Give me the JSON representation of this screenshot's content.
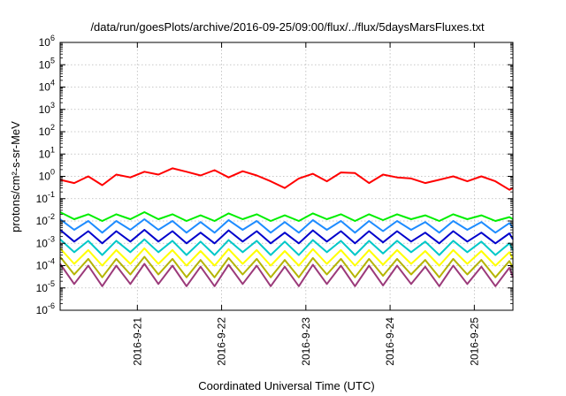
{
  "chart_data": {
    "type": "line",
    "title": "/data/run/goesPlots/archive/2016-09-25/09:00/flux/../flux/5daysMarsFluxes.txt",
    "xlabel": "Coordinated Universal Time (UTC)",
    "ylabel": "protons/cm²-s-sr-MeV",
    "yscale": "log",
    "ylim": [
      1e-06,
      1000000.0
    ],
    "xlim": [
      "2016-09-20 02:00",
      "2016-09-25 11:00"
    ],
    "grid": true,
    "legend": "none",
    "x_ticks": [
      "2016-9-21",
      "2016-9-22",
      "2016-9-23",
      "2016-9-24",
      "2016-9-25"
    ],
    "y_ticks": [
      {
        "base": "10",
        "exp": "-6"
      },
      {
        "base": "10",
        "exp": "-5"
      },
      {
        "base": "10",
        "exp": "-4"
      },
      {
        "base": "10",
        "exp": "-3"
      },
      {
        "base": "10",
        "exp": "-2"
      },
      {
        "base": "10",
        "exp": "-1"
      },
      {
        "base": "10",
        "exp": "0"
      },
      {
        "base": "10",
        "exp": "1"
      },
      {
        "base": "10",
        "exp": "2"
      },
      {
        "base": "10",
        "exp": "3"
      },
      {
        "base": "10",
        "exp": "4"
      },
      {
        "base": "10",
        "exp": "5"
      },
      {
        "base": "10",
        "exp": "6"
      }
    ],
    "x": [
      "2016-09-20 02:00",
      "2016-09-20 06:00",
      "2016-09-20 10:00",
      "2016-09-20 14:00",
      "2016-09-20 18:00",
      "2016-09-20 22:00",
      "2016-09-21 02:00",
      "2016-09-21 06:00",
      "2016-09-21 10:00",
      "2016-09-21 14:00",
      "2016-09-21 18:00",
      "2016-09-21 22:00",
      "2016-09-22 02:00",
      "2016-09-22 06:00",
      "2016-09-22 10:00",
      "2016-09-22 14:00",
      "2016-09-22 18:00",
      "2016-09-22 22:00",
      "2016-09-23 02:00",
      "2016-09-23 06:00",
      "2016-09-23 10:00",
      "2016-09-23 14:00",
      "2016-09-23 18:00",
      "2016-09-23 22:00",
      "2016-09-24 02:00",
      "2016-09-24 06:00",
      "2016-09-24 10:00",
      "2016-09-24 14:00",
      "2016-09-24 18:00",
      "2016-09-24 22:00",
      "2016-09-25 02:00",
      "2016-09-25 06:00",
      "2016-09-25 10:00",
      "2016-09-25 11:00"
    ],
    "series": [
      {
        "color": "#ff0000",
        "values": [
          0.7,
          0.5,
          1.0,
          0.4,
          1.2,
          0.9,
          1.6,
          1.2,
          2.3,
          1.6,
          1.1,
          1.9,
          0.9,
          1.7,
          1.1,
          0.6,
          0.3,
          0.8,
          1.3,
          0.6,
          1.5,
          1.4,
          0.5,
          1.2,
          0.9,
          0.8,
          0.5,
          0.7,
          1.0,
          0.6,
          1.0,
          0.6,
          0.25,
          0.3
        ]
      },
      {
        "color": "#00ee00",
        "values": [
          0.025,
          0.012,
          0.02,
          0.01,
          0.02,
          0.012,
          0.025,
          0.012,
          0.02,
          0.01,
          0.018,
          0.01,
          0.022,
          0.012,
          0.02,
          0.01,
          0.018,
          0.01,
          0.022,
          0.012,
          0.02,
          0.01,
          0.02,
          0.011,
          0.02,
          0.012,
          0.018,
          0.01,
          0.02,
          0.012,
          0.018,
          0.01,
          0.015,
          0.012
        ]
      },
      {
        "color": "#1e8cff",
        "values": [
          0.012,
          0.004,
          0.01,
          0.003,
          0.01,
          0.004,
          0.012,
          0.004,
          0.01,
          0.003,
          0.009,
          0.003,
          0.011,
          0.004,
          0.01,
          0.003,
          0.009,
          0.003,
          0.011,
          0.004,
          0.01,
          0.003,
          0.01,
          0.0035,
          0.01,
          0.004,
          0.009,
          0.003,
          0.01,
          0.004,
          0.009,
          0.003,
          0.008,
          0.005
        ]
      },
      {
        "color": "#0000cc",
        "values": [
          0.004,
          0.0012,
          0.0035,
          0.001,
          0.0035,
          0.0012,
          0.004,
          0.0012,
          0.0035,
          0.001,
          0.003,
          0.001,
          0.0038,
          0.0012,
          0.0035,
          0.001,
          0.003,
          0.001,
          0.0038,
          0.0012,
          0.0035,
          0.001,
          0.0035,
          0.0011,
          0.0035,
          0.0012,
          0.003,
          0.001,
          0.0035,
          0.0012,
          0.003,
          0.001,
          0.0028,
          0.0015
        ]
      },
      {
        "color": "#00c8c8",
        "values": [
          0.0015,
          0.0004,
          0.0013,
          0.0003,
          0.0013,
          0.0004,
          0.0015,
          0.0004,
          0.0013,
          0.0003,
          0.0012,
          0.0003,
          0.0014,
          0.0004,
          0.0013,
          0.0003,
          0.0012,
          0.0003,
          0.0014,
          0.0004,
          0.0013,
          0.0003,
          0.0013,
          0.00035,
          0.0013,
          0.0004,
          0.0012,
          0.0003,
          0.0013,
          0.0004,
          0.0012,
          0.0003,
          0.001,
          0.0005
        ]
      },
      {
        "color": "#ffff00",
        "values": [
          0.0006,
          0.00012,
          0.0005,
          0.0001,
          0.0005,
          0.00012,
          0.0006,
          0.00012,
          0.0005,
          0.0001,
          0.00045,
          0.0001,
          0.00055,
          0.00012,
          0.0005,
          0.0001,
          0.00045,
          0.0001,
          0.00055,
          0.00012,
          0.0005,
          0.0001,
          0.0005,
          0.00011,
          0.0005,
          0.00012,
          0.00045,
          0.0001,
          0.0005,
          0.00012,
          0.00045,
          0.0001,
          0.0004,
          0.0002
        ]
      },
      {
        "color": "#b4b400",
        "values": [
          0.00025,
          4e-05,
          0.0002,
          3e-05,
          0.0002,
          4e-05,
          0.00025,
          4e-05,
          0.0002,
          3e-05,
          0.00018,
          3e-05,
          0.00022,
          4e-05,
          0.0002,
          3e-05,
          0.00018,
          3e-05,
          0.00022,
          4e-05,
          0.0002,
          3e-05,
          0.0002,
          3.5e-05,
          0.0002,
          4e-05,
          0.00018,
          3e-05,
          0.0002,
          4e-05,
          0.00018,
          3e-05,
          0.00016,
          8e-05
        ]
      },
      {
        "color": "#9b3a7a",
        "values": [
          0.00012,
          1.5e-05,
          0.0001,
          1.2e-05,
          0.0001,
          1.5e-05,
          0.00012,
          1.5e-05,
          0.0001,
          1.2e-05,
          9e-05,
          1.2e-05,
          0.00011,
          1.5e-05,
          0.0001,
          1.2e-05,
          9e-05,
          1.2e-05,
          0.00011,
          1.5e-05,
          0.0001,
          1.2e-05,
          0.0001,
          1.3e-05,
          0.0001,
          1.5e-05,
          9e-05,
          1.2e-05,
          0.0001,
          1.5e-05,
          9e-05,
          1.2e-05,
          8e-05,
          3e-05
        ]
      }
    ]
  }
}
